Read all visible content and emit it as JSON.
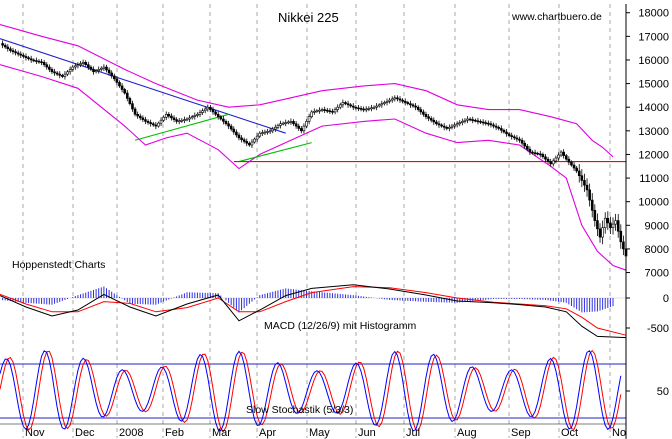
{
  "chart_data": [
    {
      "type": "candlestick",
      "title": "Nikkei 225",
      "watermark": "www.chartbuero.de",
      "caption": "Hoppenstedt Charts",
      "x_labels": [
        "Nov",
        "Dec",
        "2008",
        "Feb",
        "Mar",
        "Apr",
        "May",
        "Jun",
        "Jul",
        "Aug",
        "Sep",
        "Oct",
        "No"
      ],
      "y_ticks": [
        7000,
        8000,
        9000,
        10000,
        11000,
        12000,
        13000,
        14000,
        15000,
        16000,
        17000,
        18000
      ],
      "ylim": [
        6600,
        18200
      ],
      "grid": true,
      "horizontal_line": {
        "value": 11700,
        "color": "#ff0000"
      },
      "close_path": [
        [
          0,
          16700
        ],
        [
          4,
          16400
        ],
        [
          8,
          16200
        ],
        [
          12,
          16000
        ],
        [
          16,
          15900
        ],
        [
          20,
          15500
        ],
        [
          24,
          15300
        ],
        [
          28,
          15700
        ],
        [
          32,
          15900
        ],
        [
          36,
          15500
        ],
        [
          40,
          15700
        ],
        [
          44,
          15200
        ],
        [
          48,
          14600
        ],
        [
          52,
          13700
        ],
        [
          56,
          13400
        ],
        [
          60,
          13200
        ],
        [
          64,
          13700
        ],
        [
          68,
          13400
        ],
        [
          72,
          13500
        ],
        [
          76,
          13700
        ],
        [
          80,
          14000
        ],
        [
          84,
          13600
        ],
        [
          88,
          13200
        ],
        [
          92,
          12700
        ],
        [
          96,
          12400
        ],
        [
          100,
          12900
        ],
        [
          104,
          13000
        ],
        [
          108,
          13300
        ],
        [
          112,
          13400
        ],
        [
          116,
          13000
        ],
        [
          120,
          13800
        ],
        [
          124,
          13900
        ],
        [
          128,
          13800
        ],
        [
          132,
          14200
        ],
        [
          136,
          14000
        ],
        [
          140,
          13900
        ],
        [
          144,
          14000
        ],
        [
          148,
          14200
        ],
        [
          152,
          14400
        ],
        [
          156,
          14200
        ],
        [
          160,
          14000
        ],
        [
          164,
          13600
        ],
        [
          168,
          13300
        ],
        [
          172,
          13100
        ],
        [
          176,
          13300
        ],
        [
          180,
          13500
        ],
        [
          184,
          13400
        ],
        [
          188,
          13300
        ],
        [
          192,
          13100
        ],
        [
          196,
          12800
        ],
        [
          200,
          12600
        ],
        [
          204,
          12100
        ],
        [
          208,
          12000
        ],
        [
          212,
          11600
        ],
        [
          216,
          12100
        ],
        [
          218,
          11800
        ],
        [
          222,
          11300
        ],
        [
          226,
          10500
        ],
        [
          229,
          9200
        ],
        [
          231,
          8500
        ],
        [
          233,
          9300
        ],
        [
          235,
          8900
        ],
        [
          237,
          9200
        ],
        [
          239,
          8300
        ],
        [
          241,
          7700
        ]
      ],
      "upper_band": [
        [
          0,
          17500
        ],
        [
          16,
          17000
        ],
        [
          30,
          16600
        ],
        [
          48,
          15600
        ],
        [
          60,
          15000
        ],
        [
          76,
          14300
        ],
        [
          88,
          14000
        ],
        [
          100,
          14100
        ],
        [
          112,
          14400
        ],
        [
          124,
          14700
        ],
        [
          140,
          14900
        ],
        [
          152,
          15000
        ],
        [
          164,
          14700
        ],
        [
          176,
          14100
        ],
        [
          188,
          13900
        ],
        [
          200,
          13900
        ],
        [
          212,
          13600
        ],
        [
          222,
          13300
        ],
        [
          228,
          12600
        ],
        [
          232,
          12300
        ],
        [
          236,
          11900
        ]
      ],
      "lower_band": [
        [
          0,
          15800
        ],
        [
          16,
          15300
        ],
        [
          30,
          14800
        ],
        [
          48,
          13200
        ],
        [
          56,
          12400
        ],
        [
          64,
          12700
        ],
        [
          72,
          12900
        ],
        [
          84,
          12200
        ],
        [
          92,
          11400
        ],
        [
          100,
          12000
        ],
        [
          112,
          12600
        ],
        [
          124,
          13200
        ],
        [
          140,
          13400
        ],
        [
          152,
          13500
        ],
        [
          164,
          12900
        ],
        [
          176,
          12500
        ],
        [
          188,
          12600
        ],
        [
          200,
          12400
        ],
        [
          212,
          11500
        ],
        [
          218,
          11000
        ],
        [
          224,
          9000
        ],
        [
          230,
          7900
        ],
        [
          236,
          7300
        ],
        [
          241,
          7100
        ]
      ],
      "trendlines": [
        {
          "from": [
            0,
            16900
          ],
          "to": [
            110,
            12900
          ],
          "color": "#2020d0"
        },
        {
          "from": [
            52,
            12600
          ],
          "to": [
            88,
            13700
          ],
          "color": "#00c000"
        },
        {
          "from": [
            92,
            11700
          ],
          "to": [
            120,
            12500
          ],
          "color": "#00c000"
        }
      ]
    },
    {
      "type": "macd",
      "label": "MACD (12/26/9) mit Histogramm",
      "y_ticks": [
        0,
        -500
      ],
      "macd": [
        [
          0,
          40
        ],
        [
          10,
          -150
        ],
        [
          20,
          -300
        ],
        [
          30,
          -200
        ],
        [
          40,
          60
        ],
        [
          50,
          -150
        ],
        [
          60,
          -300
        ],
        [
          72,
          -100
        ],
        [
          84,
          50
        ],
        [
          92,
          -380
        ],
        [
          100,
          -200
        ],
        [
          110,
          40
        ],
        [
          120,
          160
        ],
        [
          136,
          220
        ],
        [
          150,
          150
        ],
        [
          164,
          50
        ],
        [
          176,
          -50
        ],
        [
          190,
          -80
        ],
        [
          200,
          -110
        ],
        [
          210,
          -150
        ],
        [
          218,
          -230
        ],
        [
          224,
          -470
        ],
        [
          230,
          -640
        ],
        [
          241,
          -660
        ]
      ],
      "signal": [
        [
          0,
          60
        ],
        [
          10,
          -100
        ],
        [
          20,
          -230
        ],
        [
          30,
          -230
        ],
        [
          40,
          -60
        ],
        [
          50,
          -90
        ],
        [
          60,
          -230
        ],
        [
          72,
          -160
        ],
        [
          84,
          0
        ],
        [
          92,
          -230
        ],
        [
          100,
          -230
        ],
        [
          110,
          -60
        ],
        [
          120,
          90
        ],
        [
          136,
          190
        ],
        [
          150,
          170
        ],
        [
          164,
          90
        ],
        [
          176,
          0
        ],
        [
          190,
          -70
        ],
        [
          200,
          -100
        ],
        [
          210,
          -130
        ],
        [
          218,
          -180
        ],
        [
          224,
          -320
        ],
        [
          230,
          -500
        ],
        [
          241,
          -620
        ]
      ]
    },
    {
      "type": "stochastic",
      "label": "Slow Stochastik (5/3/3)",
      "y_ticks": [
        50
      ],
      "bands": [
        20,
        80
      ]
    }
  ]
}
